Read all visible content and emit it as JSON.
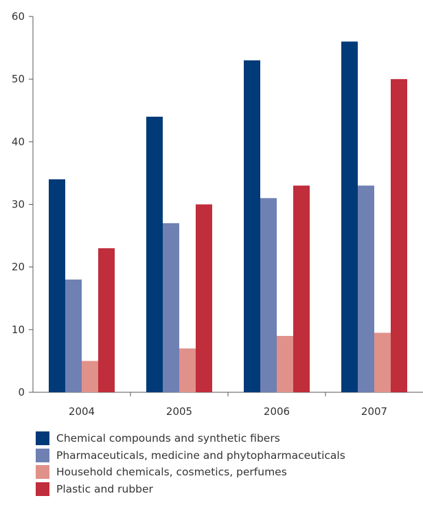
{
  "chart_data": {
    "type": "bar",
    "title": "",
    "xlabel": "",
    "ylabel": "",
    "categories": [
      "2004",
      "2005",
      "2006",
      "2007"
    ],
    "ylim": [
      0,
      60
    ],
    "yticks": [
      0,
      10,
      20,
      30,
      40,
      50,
      60
    ],
    "grid": false,
    "legend_position": "bottom",
    "series": [
      {
        "name": "Chemical compounds and synthetic fibers",
        "color": "#003a78",
        "values": [
          34,
          44,
          53,
          56
        ]
      },
      {
        "name": "Pharmaceuticals, medicine and phytopharmaceuticals",
        "color": "#6f80b3",
        "values": [
          18,
          27,
          31,
          33
        ]
      },
      {
        "name": "Household chemicals, cosmetics, perfumes",
        "color": "#e0918a",
        "values": [
          5,
          7,
          9,
          9.5
        ]
      },
      {
        "name": "Plastic and rubber",
        "color": "#c02d3b",
        "values": [
          23,
          30,
          33,
          50
        ]
      }
    ]
  }
}
